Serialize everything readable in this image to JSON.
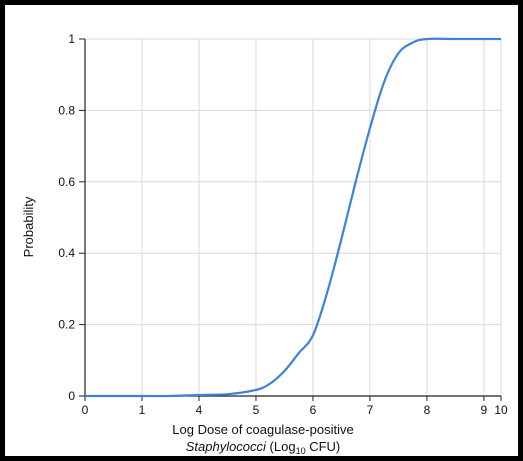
{
  "chart_data": {
    "type": "line",
    "title": "",
    "ylabel": "Probability",
    "xlabel": {
      "line1": "Log Dose of coagulase-positive",
      "line2_italic": "Staphylococci",
      "line2_rest": " (Log",
      "line2_sub": "10",
      "line2_end": " CFU)"
    },
    "xlim": [
      0,
      10
    ],
    "ylim": [
      0,
      1
    ],
    "x_ticks": [
      {
        "value": 0,
        "label": "0"
      },
      {
        "value": 1,
        "label": "1"
      },
      {
        "value": 2,
        "label": "4"
      },
      {
        "value": 3,
        "label": "5"
      },
      {
        "value": 4,
        "label": "6"
      },
      {
        "value": 5,
        "label": "7"
      },
      {
        "value": 6,
        "label": "8"
      },
      {
        "value": 7,
        "label": "9"
      },
      {
        "value": 7.3,
        "label": "10"
      }
    ],
    "y_ticks": [
      {
        "value": 0,
        "label": "0"
      },
      {
        "value": 0.2,
        "label": "0.2"
      },
      {
        "value": 0.4,
        "label": "0.4"
      },
      {
        "value": 0.6,
        "label": "0.6"
      },
      {
        "value": 0.8,
        "label": "0.8"
      },
      {
        "value": 1,
        "label": "1"
      }
    ],
    "grid": true,
    "series": [
      {
        "color": "#3b82d9",
        "x": [
          0,
          0.5,
          1,
          1.5,
          2,
          2.5,
          3,
          3.25,
          3.5,
          3.75,
          4,
          4.25,
          4.5,
          4.75,
          5,
          5.25,
          5.5,
          5.75,
          6,
          6.5,
          7,
          7.3
        ],
        "y": [
          0,
          0,
          0,
          0,
          0.003,
          0.005,
          0.017,
          0.035,
          0.07,
          0.12,
          0.17,
          0.29,
          0.44,
          0.6,
          0.75,
          0.88,
          0.96,
          0.99,
          1.0,
          1.0,
          1.0,
          1.0
        ]
      }
    ]
  }
}
